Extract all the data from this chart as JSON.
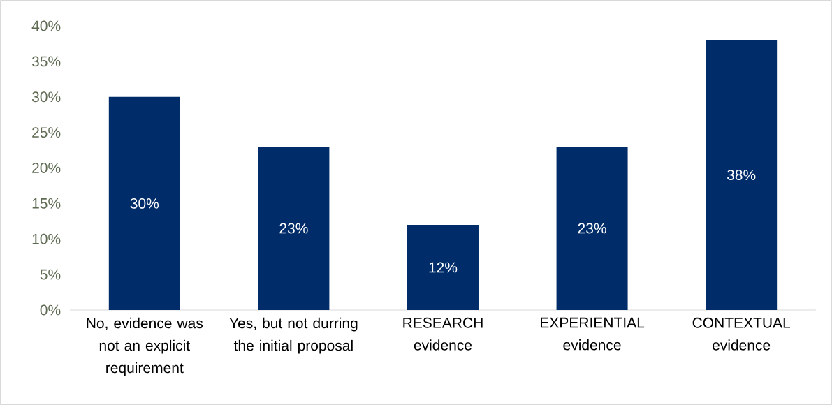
{
  "chart_data": {
    "type": "bar",
    "categories": [
      "No, evidence was not an explicit requirement",
      "Yes, but not durring the initial proposal",
      "RESEARCH evidence",
      "EXPERIENTIAL evidence",
      "CONTEXTUAL evidence"
    ],
    "values": [
      30,
      23,
      12,
      23,
      38
    ],
    "value_labels": [
      "30%",
      "23%",
      "12%",
      "23%",
      "38%"
    ],
    "color": "#002d6a",
    "ylim": [
      0,
      40
    ],
    "yticks": [
      {
        "value": 0,
        "label": "0%"
      },
      {
        "value": 5,
        "label": "5%"
      },
      {
        "value": 10,
        "label": "10%"
      },
      {
        "value": 15,
        "label": "15%"
      },
      {
        "value": 20,
        "label": "20%"
      },
      {
        "value": 25,
        "label": "25%"
      },
      {
        "value": 30,
        "label": "30%"
      },
      {
        "value": 35,
        "label": "35%"
      },
      {
        "value": 40,
        "label": "40%"
      }
    ]
  }
}
